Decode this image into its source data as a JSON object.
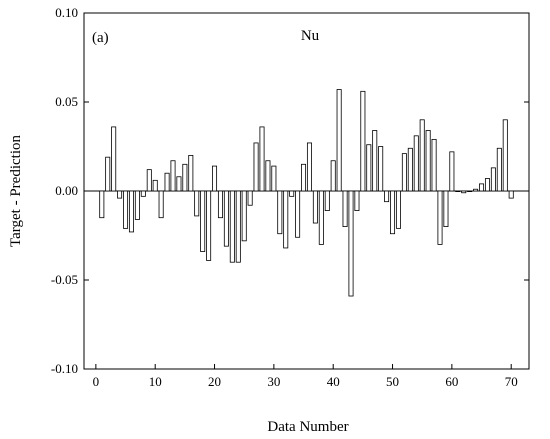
{
  "chart_data": {
    "type": "bar",
    "panel_label": "(a)",
    "title": "Nu",
    "xlabel": "Data Number",
    "ylabel": "Target - Prediction",
    "xlim": [
      -2,
      73
    ],
    "ylim": [
      -0.1,
      0.1
    ],
    "x_ticks": [
      0,
      10,
      20,
      30,
      40,
      50,
      60,
      70
    ],
    "y_ticks": [
      -0.1,
      -0.05,
      0.0,
      0.05,
      0.1
    ],
    "y_tick_labels": [
      "-0.10",
      "-0.05",
      "0.00",
      "0.05",
      "0.10"
    ],
    "zero_line": true,
    "grid": false,
    "bar_fill": "#ffffff",
    "bar_stroke": "#000000",
    "x": [
      1,
      2,
      3,
      4,
      5,
      6,
      7,
      8,
      9,
      10,
      11,
      12,
      13,
      14,
      15,
      16,
      17,
      18,
      19,
      20,
      21,
      22,
      23,
      24,
      25,
      26,
      27,
      28,
      29,
      30,
      31,
      32,
      33,
      34,
      35,
      36,
      37,
      38,
      39,
      40,
      41,
      42,
      43,
      44,
      45,
      46,
      47,
      48,
      49,
      50,
      51,
      52,
      53,
      54,
      55,
      56,
      57,
      58,
      59,
      60,
      61,
      62,
      63,
      64,
      65,
      66,
      67,
      68,
      69,
      70
    ],
    "values": [
      -0.015,
      0.019,
      0.036,
      -0.004,
      -0.021,
      -0.023,
      -0.016,
      -0.003,
      0.012,
      0.006,
      -0.015,
      0.01,
      0.017,
      0.008,
      0.015,
      0.02,
      -0.014,
      -0.034,
      -0.039,
      0.014,
      -0.015,
      -0.031,
      -0.04,
      -0.04,
      -0.028,
      -0.008,
      0.027,
      0.036,
      0.017,
      0.014,
      -0.024,
      -0.032,
      -0.003,
      -0.026,
      0.015,
      0.027,
      -0.018,
      -0.03,
      -0.011,
      0.017,
      0.057,
      -0.02,
      -0.059,
      -0.011,
      0.056,
      0.026,
      0.034,
      0.025,
      -0.006,
      -0.024,
      -0.021,
      0.021,
      0.024,
      0.031,
      0.04,
      0.034,
      0.029,
      -0.03,
      -0.02,
      0.022,
      0.0,
      -0.001,
      0.0,
      0.001,
      0.004,
      0.007,
      0.013,
      0.024,
      0.04,
      -0.004
    ]
  }
}
